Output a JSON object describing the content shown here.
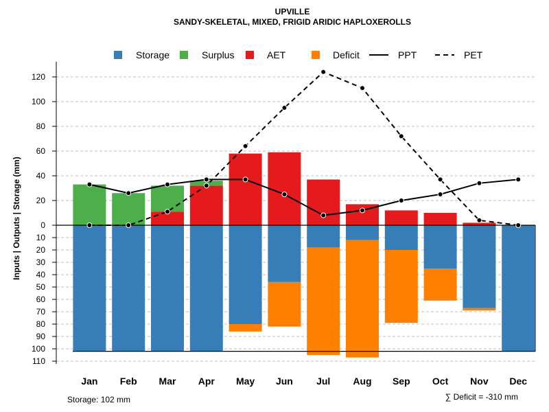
{
  "chart_data": {
    "type": "bar",
    "title": "UPVILLE",
    "subtitle": "SANDY-SKELETAL, MIXED, FRIGID ARIDIC HAPLOXEROLLS",
    "ylabel": "Inputs | Outputs | Storage     (mm)",
    "ylim_top": [
      0,
      130
    ],
    "ylim_bottom": [
      0,
      110
    ],
    "yticks_top": [
      "0",
      "20",
      "40",
      "60",
      "80",
      "100",
      "120"
    ],
    "yticks_bottom": [
      "10",
      "20",
      "30",
      "40",
      "50",
      "60",
      "70",
      "80",
      "90",
      "100",
      "110"
    ],
    "categories": [
      "Jan",
      "Feb",
      "Mar",
      "Apr",
      "May",
      "Jun",
      "Jul",
      "Aug",
      "Sep",
      "Oct",
      "Nov",
      "Dec"
    ],
    "top_series": {
      "aet": [
        0,
        0,
        11,
        32,
        58,
        59,
        37,
        17,
        12,
        10,
        2,
        0
      ],
      "surplus": [
        33,
        26,
        21,
        4,
        0,
        0,
        0,
        0,
        0,
        0,
        0,
        0
      ]
    },
    "bottom_series": {
      "storage": [
        102,
        102,
        102,
        102,
        80,
        46,
        18,
        12,
        20,
        35,
        67,
        102
      ],
      "deficit": [
        0,
        0,
        0,
        0,
        6,
        36,
        87,
        95,
        59,
        26,
        2,
        0
      ]
    },
    "ppt": [
      33,
      26,
      33,
      37,
      37,
      25,
      8,
      12,
      20,
      25,
      34,
      37
    ],
    "pet": [
      0,
      0,
      11,
      32,
      64,
      95,
      124,
      111,
      72,
      37,
      4,
      0
    ],
    "legend": [
      {
        "label": "Storage",
        "type": "box",
        "color": "#377eb8"
      },
      {
        "label": "Surplus",
        "type": "box",
        "color": "#4daf4a"
      },
      {
        "label": "AET",
        "type": "box",
        "color": "#e41a1c"
      },
      {
        "label": "Deficit",
        "type": "box",
        "color": "#ff7f00"
      },
      {
        "label": "PPT",
        "type": "solid",
        "color": "#000000"
      },
      {
        "label": "PET",
        "type": "dashed",
        "color": "#000000"
      }
    ],
    "colors": {
      "storage": "#377eb8",
      "surplus": "#4daf4a",
      "aet": "#e41a1c",
      "deficit": "#ff7f00"
    },
    "storage_note": "Storage: 102 mm",
    "deficit_note": "∑ Deficit = -310 mm"
  }
}
